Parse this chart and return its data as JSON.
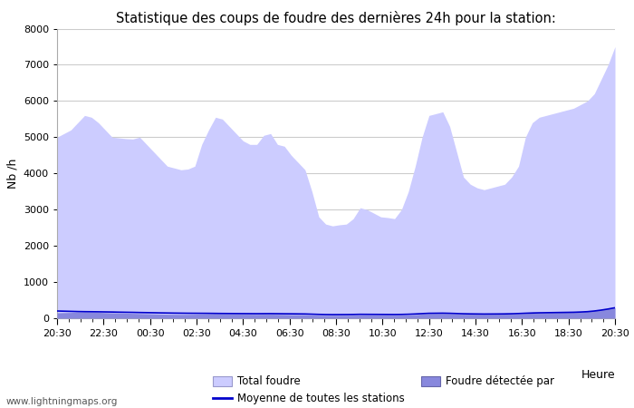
{
  "title": "Statistique des coups de foudre des dernières 24h pour la station:",
  "xlabel": "Heure",
  "ylabel": "Nb /h",
  "watermark": "www.lightningmaps.org",
  "ylim": [
    0,
    8000
  ],
  "yticks": [
    0,
    1000,
    2000,
    3000,
    4000,
    5000,
    6000,
    7000,
    8000
  ],
  "xtick_labels": [
    "20:30",
    "22:30",
    "00:30",
    "02:30",
    "04:30",
    "06:30",
    "08:30",
    "10:30",
    "12:30",
    "14:30",
    "16:30",
    "18:30",
    "20:30"
  ],
  "total_foudre_color": "#ccccff",
  "foudre_detectee_color": "#8888dd",
  "moyenne_color": "#0000cc",
  "legend_labels": [
    "Total foudre",
    "Foudre détectée par",
    "Moyenne de toutes les stations"
  ],
  "total_foudre": [
    5000,
    5100,
    5200,
    5400,
    5600,
    5550,
    5400,
    5200,
    5000,
    4980,
    4960,
    4950,
    5000,
    4800,
    4600,
    4400,
    4200,
    4150,
    4100,
    4120,
    4200,
    4800,
    5200,
    5550,
    5500,
    5300,
    5100,
    4900,
    4800,
    4800,
    5050,
    5100,
    4800,
    4750,
    4500,
    4300,
    4100,
    3500,
    2800,
    2600,
    2550,
    2580,
    2600,
    2750,
    3050,
    3000,
    2900,
    2800,
    2780,
    2750,
    3000,
    3500,
    4200,
    5000,
    5600,
    5650,
    5700,
    5300,
    4600,
    3900,
    3700,
    3600,
    3550,
    3600,
    3650,
    3700,
    3900,
    4200,
    5000,
    5400,
    5550,
    5600,
    5650,
    5700,
    5750,
    5800,
    5900,
    6000,
    6200,
    6600,
    7000,
    7500
  ],
  "foudre_detectee": [
    150,
    155,
    160,
    170,
    175,
    170,
    165,
    155,
    150,
    145,
    140,
    135,
    130,
    125,
    120,
    115,
    110,
    108,
    106,
    107,
    110,
    115,
    120,
    125,
    120,
    118,
    115,
    112,
    110,
    108,
    110,
    112,
    108,
    105,
    100,
    98,
    95,
    88,
    82,
    80,
    80,
    81,
    82,
    84,
    88,
    88,
    87,
    86,
    85,
    84,
    86,
    90,
    100,
    115,
    125,
    128,
    130,
    125,
    118,
    112,
    110,
    109,
    108,
    109,
    110,
    112,
    115,
    120,
    130,
    140,
    148,
    152,
    156,
    160,
    165,
    170,
    180,
    195,
    215,
    240,
    265,
    290
  ],
  "moyenne": [
    200,
    195,
    190,
    185,
    182,
    180,
    178,
    175,
    172,
    168,
    165,
    162,
    158,
    155,
    152,
    148,
    145,
    142,
    140,
    138,
    137,
    136,
    135,
    133,
    131,
    130,
    129,
    128,
    127,
    126,
    127,
    128,
    126,
    124,
    122,
    120,
    118,
    112,
    106,
    102,
    100,
    101,
    102,
    104,
    108,
    107,
    106,
    105,
    104,
    103,
    105,
    110,
    118,
    128,
    136,
    138,
    140,
    136,
    130,
    124,
    120,
    118,
    116,
    117,
    118,
    120,
    124,
    130,
    138,
    145,
    150,
    153,
    156,
    159,
    162,
    165,
    172,
    182,
    200,
    225,
    255,
    290
  ],
  "background_color": "#ffffff",
  "grid_color": "#cccccc",
  "spine_color": "#aaaaaa"
}
